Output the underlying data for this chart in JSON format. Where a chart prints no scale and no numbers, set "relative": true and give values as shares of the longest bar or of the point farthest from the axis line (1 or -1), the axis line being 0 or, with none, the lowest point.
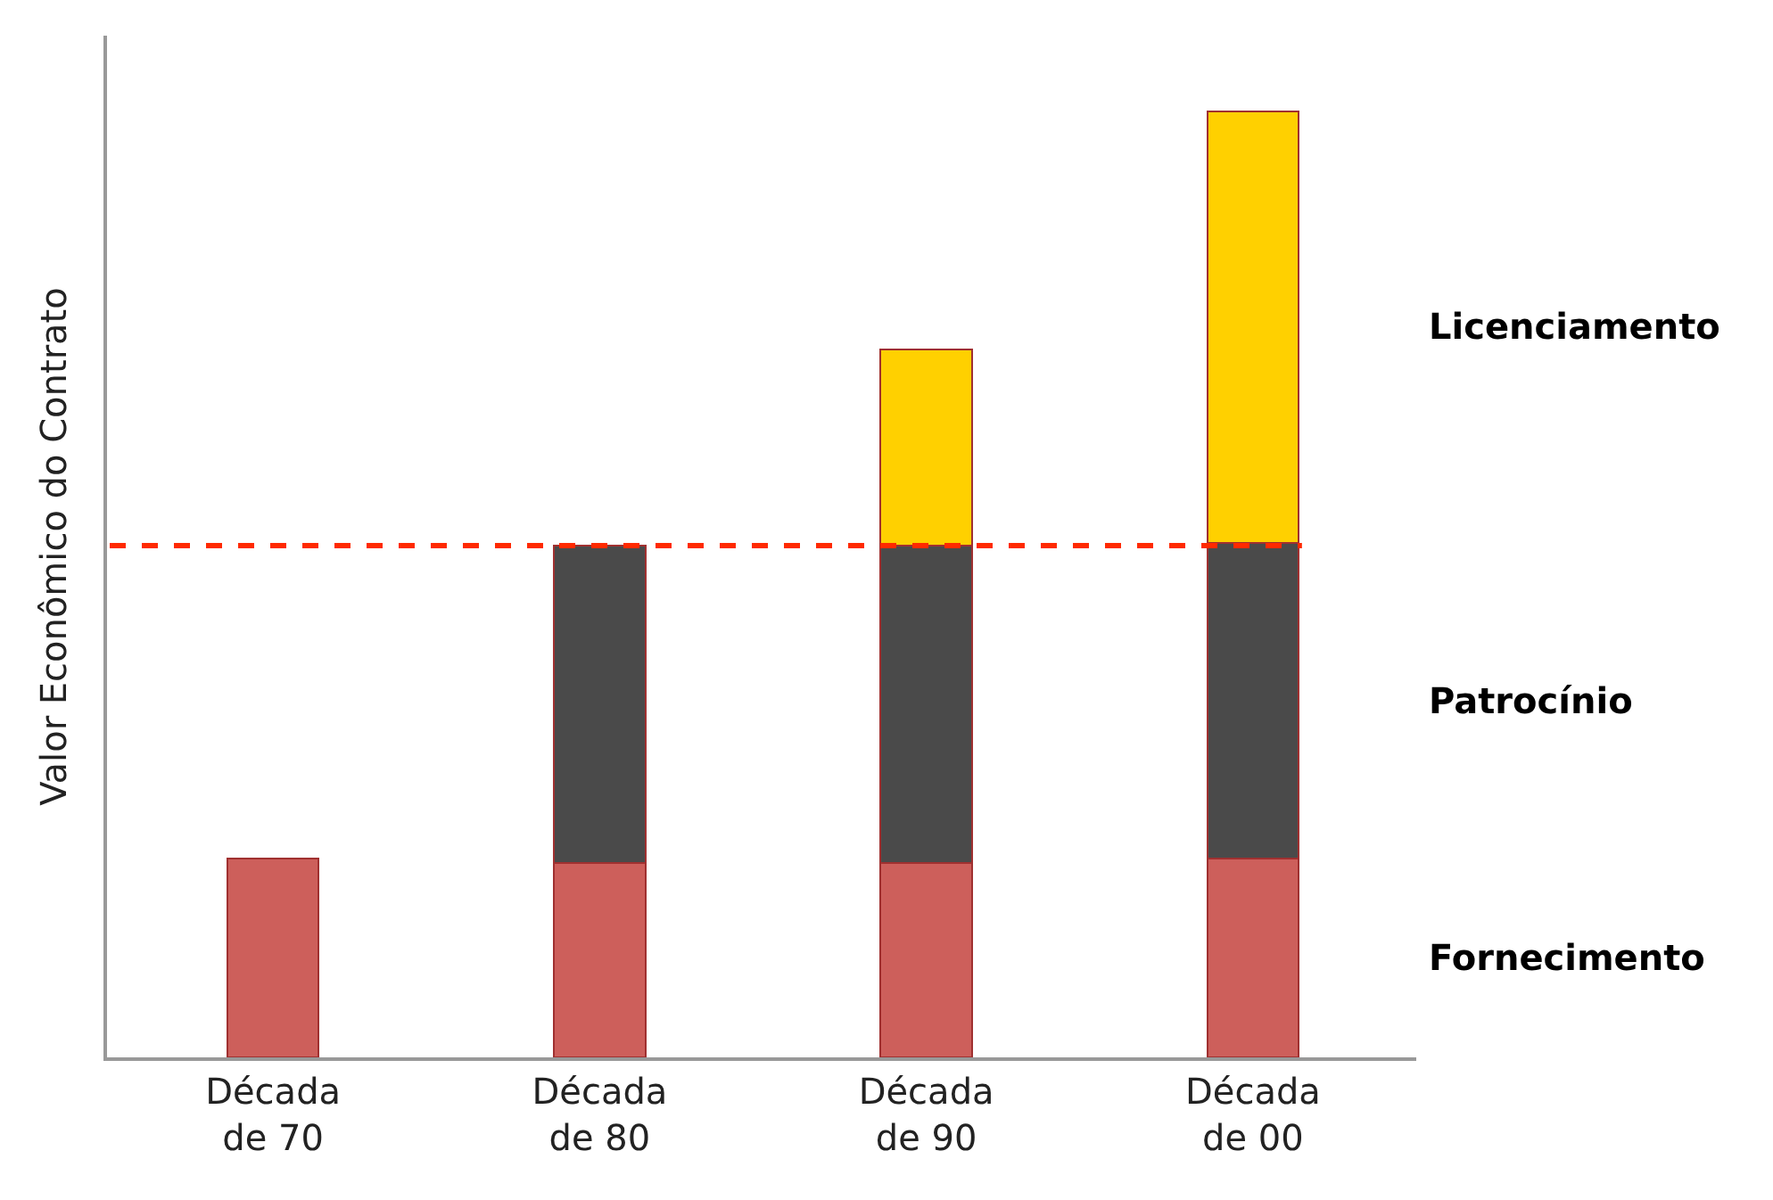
{
  "chart_data": {
    "type": "bar",
    "stacked": true,
    "relative": true,
    "ylabel": "Valor Econômico do Contrato",
    "categories": [
      "Década\nde 70",
      "Década\nde 80",
      "Década\nde 90",
      "Década\nde 00"
    ],
    "series": [
      {
        "name": "Fornecimento",
        "color": "#cd5f5b",
        "values": [
          0.21,
          0.205,
          0.205,
          0.21
        ]
      },
      {
        "name": "Patrocínio",
        "color": "#4a4a4a",
        "values": [
          null,
          0.336,
          0.336,
          0.334
        ]
      },
      {
        "name": "Licenciamento",
        "color": "#ffd000",
        "values": [
          null,
          null,
          0.207,
          0.456
        ]
      }
    ],
    "ref_lines": [
      {
        "axis": "y",
        "value": 0.541,
        "color": "#ff2a00",
        "line_style": "dashed"
      }
    ],
    "legend": false
  }
}
